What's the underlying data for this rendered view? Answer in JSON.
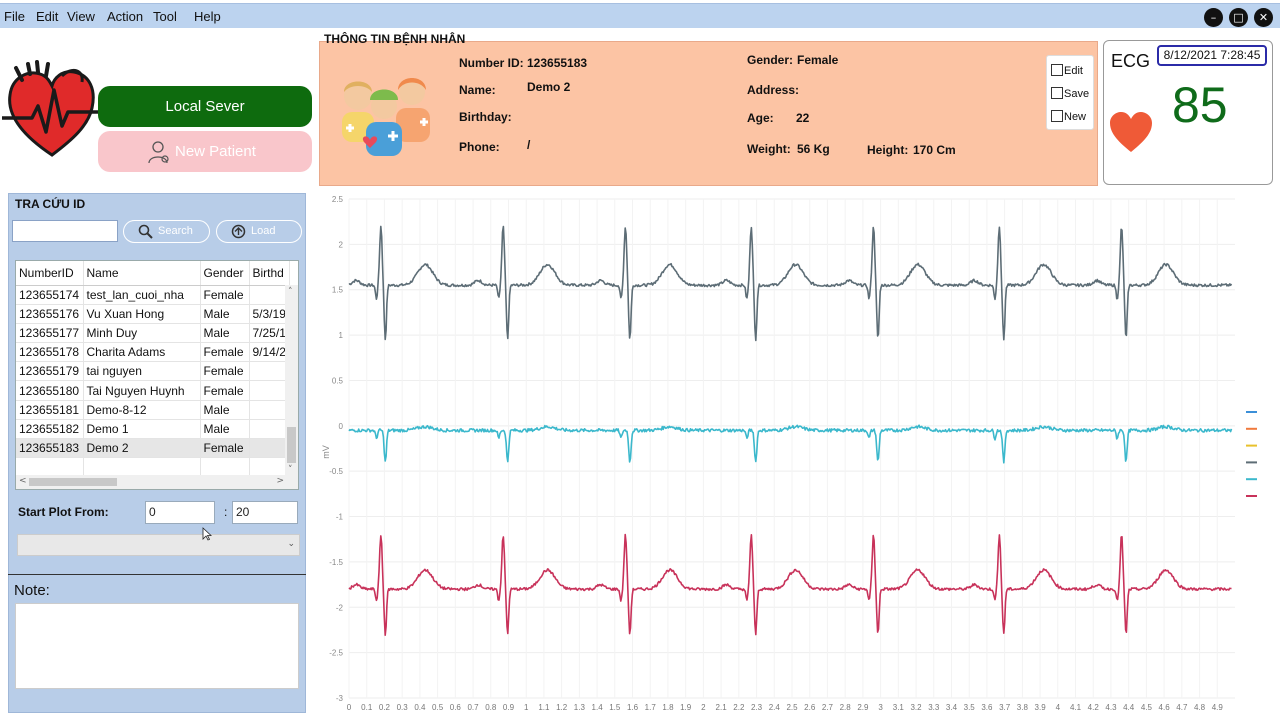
{
  "menu": [
    "File",
    "Edit",
    "View",
    "Action",
    "Tool",
    "Help"
  ],
  "window_controls": [
    "minimize-icon",
    "maximize-icon",
    "close-icon"
  ],
  "buttons": {
    "local_server": "Local Sever",
    "new_patient": "New Patient"
  },
  "patient_info": {
    "title": "THÔNG TIN BỆNH NHÂN",
    "number_id_label": "Number ID:",
    "number_id": "123655183",
    "name_label": "Name:",
    "name": "Demo 2",
    "birthday_label": "Birthday:",
    "birthday": "",
    "phone_label": "Phone:",
    "phone": "/",
    "gender_label": "Gender:",
    "gender": "Female",
    "address_label": "Address:",
    "address": "",
    "age_label": "Age:",
    "age": "22",
    "weight_label": "Weight:",
    "weight": "56 Kg",
    "height_label": "Height:",
    "height": "170 Cm",
    "tools": {
      "edit": "Edit",
      "save": "Save",
      "new": "New"
    }
  },
  "ecg_card": {
    "label": "ECG",
    "datetime": "8/12/2021 7:28:45",
    "bpm": "85",
    "accent": "#0f6b1a"
  },
  "lookup": {
    "title": "TRA CỨU ID",
    "search_value": "",
    "search_button": "Search",
    "load_button": "Load",
    "columns": [
      "NumberID",
      "Name",
      "Gender",
      "Birthd"
    ],
    "rows": [
      [
        "123655174",
        "test_lan_cuoi_nha",
        "Female",
        ""
      ],
      [
        "123655176",
        "Vu Xuan Hong",
        "Male",
        "5/3/19"
      ],
      [
        "123655177",
        "Minh Duy",
        "Male",
        "7/25/1"
      ],
      [
        "123655178",
        "Charita Adams",
        "Female",
        "9/14/2"
      ],
      [
        "123655179",
        "tai nguyen",
        "Female",
        ""
      ],
      [
        "123655180",
        "Tai Nguyen Huynh",
        "Female",
        ""
      ],
      [
        "123655181",
        "Demo-8-12",
        "Male",
        ""
      ],
      [
        "123655182",
        "Demo 1",
        "Male",
        ""
      ],
      [
        "123655183",
        "Demo 2",
        "Female",
        ""
      ],
      [
        "",
        "",
        "",
        ""
      ]
    ],
    "selected_row": 8,
    "start_plot_label": "Start Plot From:",
    "plot_from": "0",
    "plot_to": "20",
    "colon": ":",
    "combo_value": "",
    "note_label": "Note:",
    "note_value": ""
  },
  "chart_data": {
    "type": "line",
    "title": "",
    "xlabel": "",
    "ylabel": "mV",
    "xlim": [
      0,
      5.0
    ],
    "ylim": [
      -3,
      2.5
    ],
    "x_ticks": [
      "0",
      "0.1",
      "0.2",
      "0.3",
      "0.4",
      "0.5",
      "0.6",
      "0.7",
      "0.8",
      "0.9",
      "1",
      "1.1",
      "1.2",
      "1.3",
      "1.4",
      "1.5",
      "1.6",
      "1.7",
      "1.8",
      "1.9",
      "2",
      "2.1",
      "2.2",
      "2.3",
      "2.4",
      "2.5",
      "2.6",
      "2.7",
      "2.8",
      "2.9",
      "3",
      "3.1",
      "3.2",
      "3.3",
      "3.4",
      "3.5",
      "3.6",
      "3.7",
      "3.8",
      "3.9",
      "4",
      "4.1",
      "4.2",
      "4.3",
      "4.4",
      "4.5",
      "4.6",
      "4.7",
      "4.8",
      "4.9"
    ],
    "y_ticks": [
      "2.5",
      "2",
      "1.5",
      "1",
      "0.5",
      "0",
      "-0.5",
      "-1",
      "-1.5",
      "-2",
      "-2.5",
      "-3"
    ],
    "grid": true,
    "beat_times": [
      0.18,
      0.87,
      1.56,
      2.27,
      2.96,
      3.67,
      4.36
    ],
    "series": [
      {
        "color": "#5d6d76",
        "baseline": 1.55,
        "r_peak": 2.2,
        "s_dip": 0.95
      },
      {
        "color": "#3bb8cc",
        "baseline": -0.05,
        "r_peak": -0.05,
        "s_dip": -0.4
      },
      {
        "color": "#c8325a",
        "baseline": -1.8,
        "r_peak": -1.2,
        "s_dip": -2.3
      }
    ],
    "legend": {
      "position": "right",
      "colors": [
        "#3b8fd8",
        "#f07a3c",
        "#e8c12c",
        "#5d6d76",
        "#3bb8cc",
        "#c8325a"
      ]
    }
  }
}
